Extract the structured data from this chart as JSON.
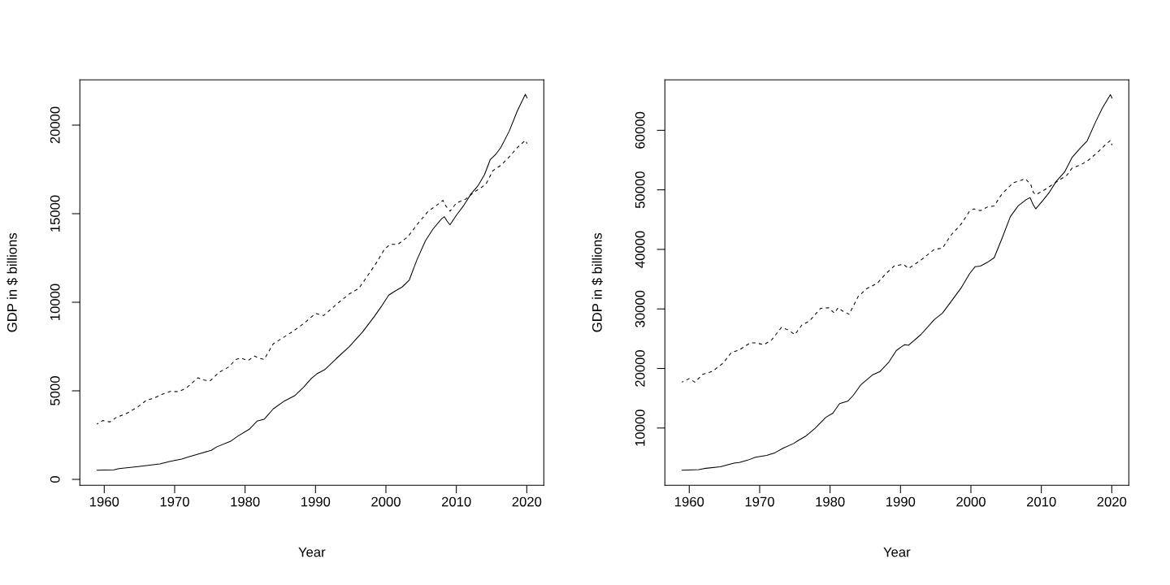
{
  "chart_data": [
    {
      "type": "line",
      "xlabel": "Year",
      "ylabel": "GDP in $ billions",
      "xlim": [
        1956.54,
        2022.42
      ],
      "ylim": [
        -335,
        22555
      ],
      "xticks": [
        1960,
        1970,
        1980,
        1990,
        2000,
        2010,
        2020
      ],
      "yticks": [
        0,
        5000,
        10000,
        15000,
        20000
      ],
      "series": [
        {
          "color": "#000000",
          "line_style": "solid",
          "x": [
            1958.96,
            1961.35,
            1962.1,
            1964.8,
            1967.9,
            1969.4,
            1971.0,
            1972.1,
            1973.7,
            1975.2,
            1976.0,
            1977.9,
            1979.0,
            1980.6,
            1981.7,
            1982.7,
            1984.0,
            1985.6,
            1987.1,
            1988.3,
            1989.4,
            1990.2,
            1991.3,
            1992.9,
            1994.8,
            1996.7,
            1998.3,
            1999.4,
            2000.4,
            2001.3,
            2002.3,
            2003.3,
            2004.4,
            2005.6,
            2006.7,
            2007.9,
            2008.3,
            2008.65,
            2009.1,
            2010.0,
            2011.0,
            2012.1,
            2013.1,
            2014.0,
            2014.8,
            2015.6,
            2016.3,
            2017.5,
            2018.65,
            2019.8,
            2020.04
          ],
          "values": [
            520,
            540,
            610,
            720,
            870,
            1020,
            1150,
            1280,
            1470,
            1640,
            1840,
            2140,
            2450,
            2830,
            3290,
            3390,
            3980,
            4430,
            4740,
            5200,
            5690,
            5960,
            6190,
            6800,
            7490,
            8330,
            9170,
            9790,
            10400,
            10630,
            10860,
            11240,
            12390,
            13460,
            14140,
            14710,
            14830,
            14600,
            14370,
            14910,
            15440,
            16130,
            16590,
            17200,
            18040,
            18350,
            18730,
            19650,
            20790,
            21740,
            21530
          ]
        },
        {
          "color": "#000000",
          "line_style": "dashed",
          "x": [
            1958.96,
            1959.8,
            1960.8,
            1961.7,
            1963.3,
            1964.8,
            1966.0,
            1967.1,
            1968.3,
            1969.4,
            1970.6,
            1971.7,
            1973.3,
            1974.2,
            1975.0,
            1976.3,
            1977.7,
            1978.65,
            1979.4,
            1980.4,
            1981.35,
            1981.9,
            1982.7,
            1984.0,
            1985.2,
            1986.7,
            1988.3,
            1990.0,
            1991.15,
            1992.9,
            1994.8,
            1996.15,
            1997.1,
            1998.65,
            1999.8,
            2000.6,
            2001.7,
            2003.1,
            2004.4,
            2006.0,
            2007.1,
            2008.1,
            2008.5,
            2009.1,
            2010.0,
            2011.35,
            2012.5,
            2013.65,
            2014.2,
            2015.2,
            2016.35,
            2017.5,
            2018.65,
            2019.8,
            2020.04
          ],
          "values": [
            3120,
            3320,
            3240,
            3490,
            3750,
            4100,
            4470,
            4590,
            4820,
            4970,
            4950,
            5170,
            5730,
            5610,
            5550,
            6040,
            6350,
            6760,
            6850,
            6700,
            6960,
            6850,
            6770,
            7650,
            7950,
            8330,
            8790,
            9370,
            9250,
            9860,
            10470,
            10780,
            11320,
            12230,
            13000,
            13270,
            13270,
            13690,
            14370,
            15140,
            15440,
            15750,
            15440,
            15140,
            15600,
            15830,
            16210,
            16510,
            16670,
            17430,
            17740,
            18200,
            18730,
            19140,
            18960
          ]
        }
      ]
    },
    {
      "type": "line",
      "xlabel": "Year",
      "ylabel": "GDP in $ billions",
      "xlim": [
        1956.54,
        2022.42
      ],
      "ylim": [
        380,
        68470
      ],
      "xticks": [
        1960,
        1970,
        1980,
        1990,
        2000,
        2010,
        2020
      ],
      "yticks": [
        10000,
        20000,
        30000,
        40000,
        50000,
        60000
      ],
      "series": [
        {
          "color": "#000000",
          "line_style": "solid",
          "x": [
            1958.96,
            1961.35,
            1962.1,
            1964.4,
            1966.35,
            1967.1,
            1968.3,
            1969.4,
            1971.0,
            1972.1,
            1973.3,
            1974.8,
            1975.6,
            1976.5,
            1977.9,
            1979.4,
            1980.4,
            1981.35,
            1982.5,
            1983.3,
            1984.4,
            1986.0,
            1987.1,
            1988.3,
            1989.4,
            1990.2,
            1990.6,
            1991.15,
            1992.9,
            1994.8,
            1995.96,
            1997.1,
            1998.65,
            1999.8,
            2000.6,
            2001.35,
            2002.3,
            2003.3,
            2004.4,
            2005.6,
            2006.7,
            2007.9,
            2008.4,
            2008.85,
            2009.2,
            2010.2,
            2011.15,
            2012.1,
            2013.3,
            2014.4,
            2015.6,
            2016.5,
            2017.7,
            2018.65,
            2019.8,
            2020.04
          ],
          "values": [
            2900,
            3000,
            3200,
            3500,
            4100,
            4200,
            4600,
            5100,
            5400,
            5800,
            6600,
            7400,
            8000,
            8600,
            10000,
            11800,
            12500,
            14100,
            14500,
            15500,
            17300,
            18900,
            19500,
            21000,
            23000,
            23700,
            24000,
            23900,
            25700,
            28200,
            29300,
            31100,
            33600,
            35900,
            37100,
            37200,
            37800,
            38600,
            41800,
            45500,
            47300,
            48400,
            48700,
            47500,
            46800,
            48200,
            49600,
            51400,
            53000,
            55500,
            57100,
            58200,
            61400,
            63700,
            66000,
            65400
          ]
        },
        {
          "color": "#000000",
          "line_style": "dashed",
          "x": [
            1958.96,
            1960.0,
            1960.8,
            1961.9,
            1963.3,
            1964.8,
            1966.0,
            1967.1,
            1968.65,
            1969.4,
            1970.6,
            1971.7,
            1973.1,
            1974.0,
            1975.0,
            1976.0,
            1977.1,
            1978.65,
            1979.8,
            1980.6,
            1981.15,
            1981.7,
            1982.7,
            1984.0,
            1985.2,
            1986.7,
            1987.9,
            1989.1,
            1990.4,
            1991.15,
            1992.9,
            1994.8,
            1995.96,
            1997.1,
            1998.65,
            1999.8,
            2000.4,
            2001.35,
            2002.3,
            2003.3,
            2004.4,
            2006.0,
            2007.1,
            2007.7,
            2008.5,
            2008.85,
            2009.2,
            2010.2,
            2011.35,
            2012.5,
            2013.65,
            2014.4,
            2015.6,
            2016.7,
            2017.9,
            2019.04,
            2019.8,
            2020.04
          ],
          "values": [
            17700,
            18300,
            17700,
            19000,
            19500,
            20900,
            22700,
            23100,
            24300,
            24300,
            24000,
            24800,
            26900,
            26500,
            25700,
            27300,
            28000,
            30100,
            30200,
            29300,
            30200,
            29700,
            29100,
            32100,
            33400,
            34300,
            35900,
            37200,
            37500,
            36800,
            38200,
            40000,
            40200,
            42300,
            44300,
            46400,
            46800,
            46500,
            47100,
            47300,
            49300,
            51200,
            51600,
            51900,
            50900,
            49600,
            49200,
            49800,
            50700,
            51600,
            52500,
            53700,
            54200,
            55000,
            56200,
            57500,
            58300,
            57500
          ]
        }
      ]
    }
  ]
}
